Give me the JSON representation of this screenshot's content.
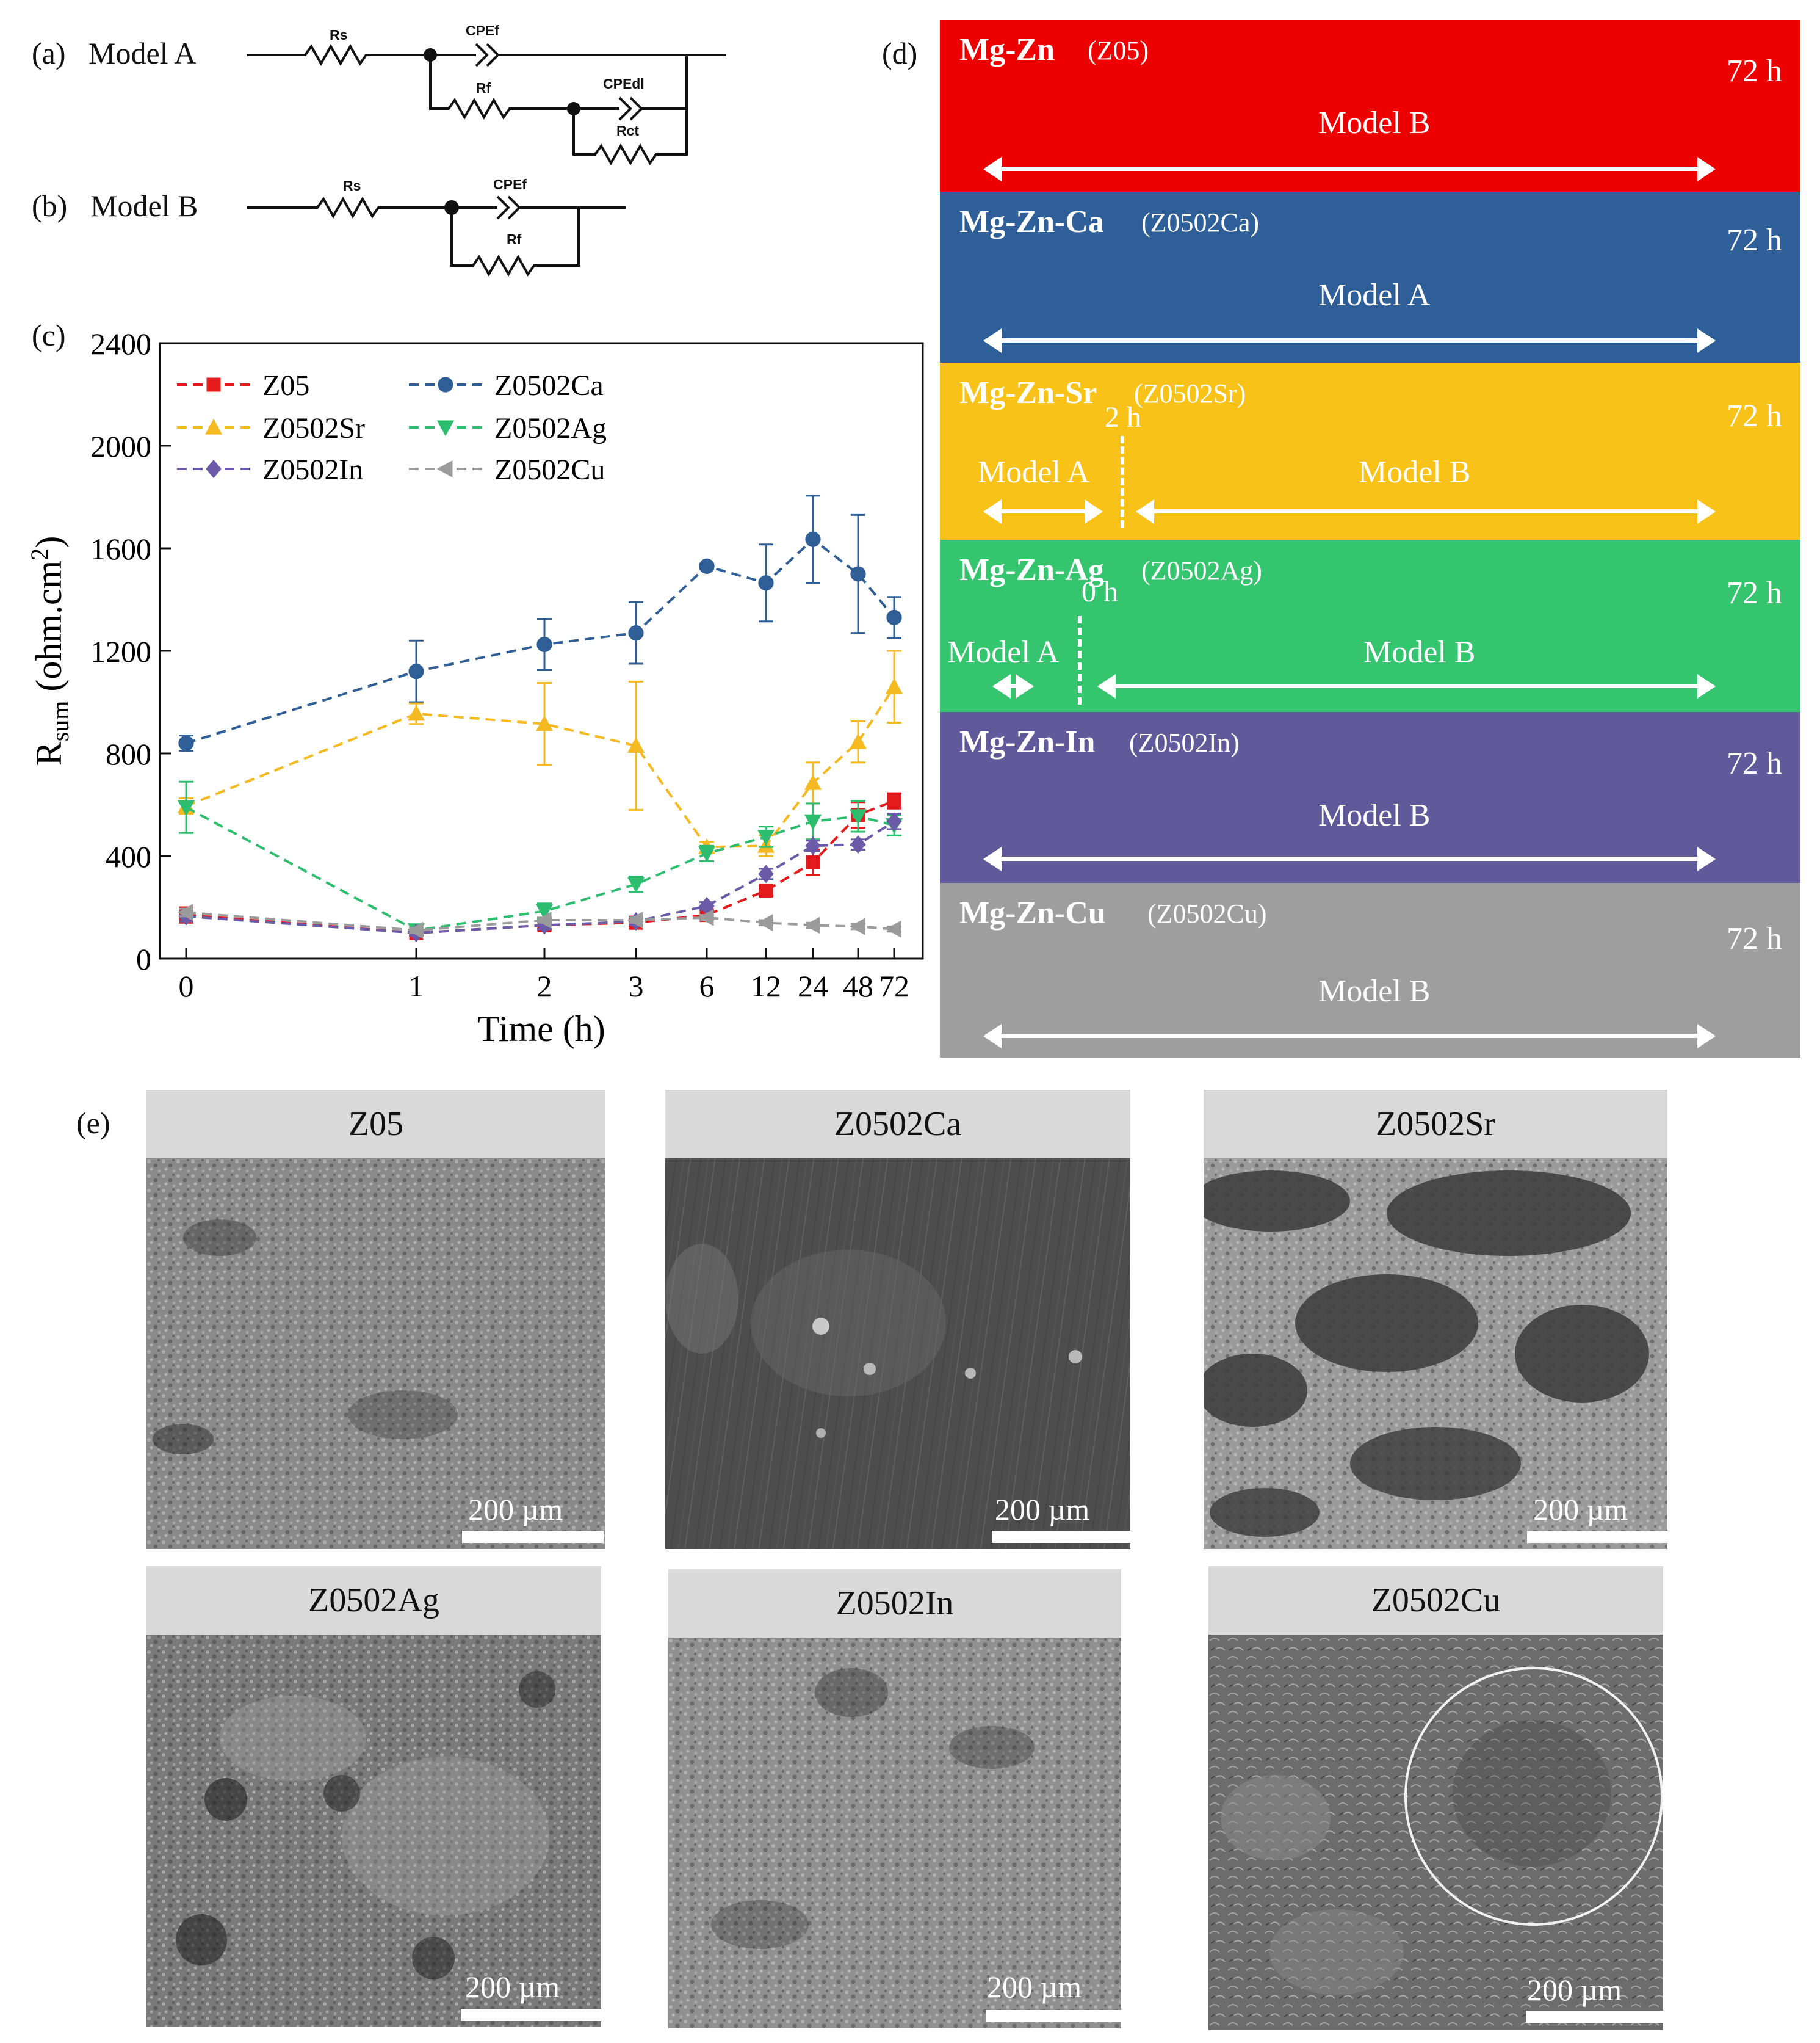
{
  "panels": {
    "a": "(a)",
    "b": "(b)",
    "c": "(c)",
    "d": "(d)",
    "e": "(e)"
  },
  "circuits": {
    "model_a": {
      "title": "Model A",
      "rs": "Rs",
      "cpef": "CPEf",
      "rf": "Rf",
      "cpedl": "CPEdl",
      "rct": "Rct"
    },
    "model_b": {
      "title": "Model B",
      "rs": "Rs",
      "cpef": "CPEf",
      "rf": "Rf"
    }
  },
  "chart_data": {
    "type": "line",
    "title": "",
    "xlabel": "Time (h)",
    "ylabel": "R",
    "ylabel_sub": "sum",
    "ylabel_unit_prefix": "(ohm.cm",
    "ylabel_unit_sup": "2",
    "ylabel_unit_suffix": ")",
    "categories": [
      "0",
      "1",
      "2",
      "3",
      "6",
      "12",
      "24",
      "48",
      "72"
    ],
    "ylim": [
      0,
      2400
    ],
    "yticks": [
      0,
      400,
      800,
      1200,
      1600,
      2000,
      2400
    ],
    "legend_position": "top-left",
    "series": [
      {
        "name": "Z05",
        "color": "#e41a1c",
        "marker": "square",
        "values": [
          170,
          100,
          130,
          140,
          170,
          265,
          375,
          560,
          615
        ],
        "errors": [
          30,
          10,
          15,
          15,
          20,
          20,
          50,
          50,
          30
        ]
      },
      {
        "name": "Z0502Ca",
        "color": "#2f5f96",
        "marker": "circle",
        "values": [
          840,
          1120,
          1225,
          1270,
          1530,
          1465,
          1635,
          1500,
          1330
        ],
        "errors": [
          30,
          120,
          100,
          120,
          10,
          150,
          170,
          230,
          80
        ]
      },
      {
        "name": "Z0502Sr",
        "color": "#f5b921",
        "marker": "triangle-up",
        "values": [
          595,
          955,
          915,
          830,
          435,
          440,
          685,
          845,
          1060
        ],
        "errors": [
          30,
          40,
          160,
          250,
          20,
          40,
          80,
          80,
          140
        ]
      },
      {
        "name": "Z0502Ag",
        "color": "#2dbd6e",
        "marker": "triangle-down",
        "values": [
          590,
          110,
          185,
          290,
          410,
          475,
          535,
          555,
          520
        ],
        "errors": [
          100,
          10,
          30,
          30,
          30,
          40,
          70,
          60,
          40
        ]
      },
      {
        "name": "Z0502In",
        "color": "#6b5aa8",
        "marker": "diamond",
        "values": [
          165,
          100,
          130,
          145,
          205,
          330,
          440,
          445,
          535
        ],
        "errors": [
          20,
          10,
          15,
          15,
          15,
          20,
          20,
          20,
          30
        ]
      },
      {
        "name": "Z0502Cu",
        "color": "#9b9b9b",
        "marker": "triangle-left",
        "values": [
          180,
          110,
          150,
          150,
          160,
          140,
          130,
          125,
          115
        ],
        "errors": [
          15,
          10,
          10,
          10,
          10,
          10,
          10,
          10,
          10
        ]
      }
    ]
  },
  "timeline": [
    {
      "alloy": "Mg-Zn",
      "code": "(Z05)",
      "hours": "72 h",
      "color": "#ee0000",
      "segments": [
        {
          "model": "Model B"
        }
      ]
    },
    {
      "alloy": "Mg-Zn-Ca",
      "code": "(Z0502Ca)",
      "hours": "72 h",
      "color": "#2e5f98",
      "segments": [
        {
          "model": "Model A"
        }
      ]
    },
    {
      "alloy": "Mg-Zn-Sr",
      "code": "(Z0502Sr)",
      "hours": "72 h",
      "color": "#f9c218",
      "switch_label": "2 h",
      "segments": [
        {
          "model": "Model A"
        },
        {
          "model": "Model B"
        }
      ]
    },
    {
      "alloy": "Mg-Zn-Ag",
      "code": "(Z0502Ag)",
      "hours": "72 h",
      "color": "#35c56f",
      "switch_label": "0 h",
      "segments": [
        {
          "model": "Model A"
        },
        {
          "model": "Model B"
        }
      ]
    },
    {
      "alloy": "Mg-Zn-In",
      "code": "(Z0502In)",
      "hours": "72 h",
      "color": "#605a9a",
      "segments": [
        {
          "model": "Model B"
        }
      ]
    },
    {
      "alloy": "Mg-Zn-Cu",
      "code": "(Z0502Cu)",
      "hours": "72 h",
      "color": "#9e9e9e",
      "segments": [
        {
          "model": "Model B"
        }
      ]
    }
  ],
  "sem": {
    "scale_label": "200 µm",
    "images": [
      {
        "title": "Z05"
      },
      {
        "title": "Z0502Ca"
      },
      {
        "title": "Z0502Sr"
      },
      {
        "title": "Z0502Ag"
      },
      {
        "title": "Z0502In"
      },
      {
        "title": "Z0502Cu"
      }
    ]
  }
}
